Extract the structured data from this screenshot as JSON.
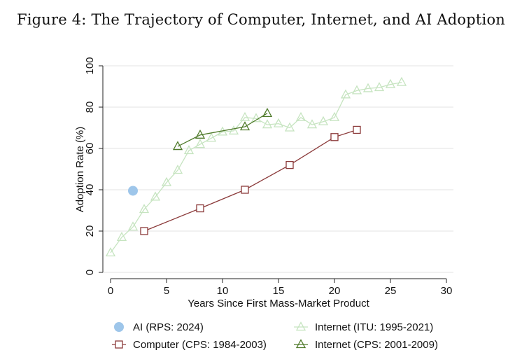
{
  "figure_title": "Figure 4: The Trajectory of Computer, Internet, and AI Adoption",
  "colors": {
    "ai": "#9ec6ea",
    "computer": "#8b3a3a",
    "internet_itu": "#c6e4c0",
    "internet_cps": "#4f7a2a",
    "axis": "#222222",
    "grid": "#e3e3e3"
  },
  "chart_data": {
    "type": "line",
    "title": "Figure 4: The Trajectory of Computer, Internet, and AI Adoption",
    "xlabel": "Years Since First Mass-Market Product",
    "ylabel": "Adoption Rate (%)",
    "xlim": [
      0,
      30
    ],
    "ylim": [
      0,
      100
    ],
    "xticks": [
      0,
      5,
      10,
      15,
      20,
      25,
      30
    ],
    "yticks": [
      0,
      20,
      40,
      60,
      80,
      100
    ],
    "grid": "horizontal",
    "legend_position": "bottom",
    "series": [
      {
        "name": "AI (RPS: 2024)",
        "marker": "circle",
        "color_key": "ai",
        "line": false,
        "points": [
          [
            2,
            39.5
          ]
        ]
      },
      {
        "name": "Internet (ITU: 1995-2021)",
        "marker": "triangle",
        "color_key": "internet_itu",
        "line": true,
        "points": [
          [
            0,
            9.5
          ],
          [
            1,
            17
          ],
          [
            2,
            22
          ],
          [
            3,
            30.5
          ],
          [
            4,
            36.5
          ],
          [
            5,
            43.5
          ],
          [
            6,
            49.5
          ],
          [
            7,
            59
          ],
          [
            8,
            62
          ],
          [
            9,
            65
          ],
          [
            10,
            68
          ],
          [
            11,
            68.5
          ],
          [
            12,
            75
          ],
          [
            13,
            74.5
          ],
          [
            14,
            71.5
          ],
          [
            15,
            72
          ],
          [
            16,
            70
          ],
          [
            17,
            75
          ],
          [
            18,
            71.5
          ],
          [
            19,
            73
          ],
          [
            20,
            75
          ],
          [
            21,
            86
          ],
          [
            22,
            88
          ],
          [
            23,
            89
          ],
          [
            24,
            89.5
          ],
          [
            25,
            91
          ],
          [
            26,
            92
          ]
        ]
      },
      {
        "name": "Computer (CPS: 1984-2003)",
        "marker": "square",
        "color_key": "computer",
        "line": true,
        "points": [
          [
            3,
            20
          ],
          [
            8,
            31
          ],
          [
            12,
            40
          ],
          [
            16,
            52
          ],
          [
            20,
            65.5
          ],
          [
            22,
            69
          ]
        ]
      },
      {
        "name": "Internet (CPS: 2001-2009)",
        "marker": "triangle",
        "color_key": "internet_cps",
        "line": true,
        "points": [
          [
            6,
            61
          ],
          [
            8,
            66.5
          ],
          [
            12,
            70.5
          ],
          [
            14,
            77
          ]
        ]
      }
    ],
    "legend_order": [
      "AI (RPS: 2024)",
      "Internet (ITU: 1995-2021)",
      "Computer (CPS: 1984-2003)",
      "Internet (CPS: 2001-2009)"
    ]
  }
}
